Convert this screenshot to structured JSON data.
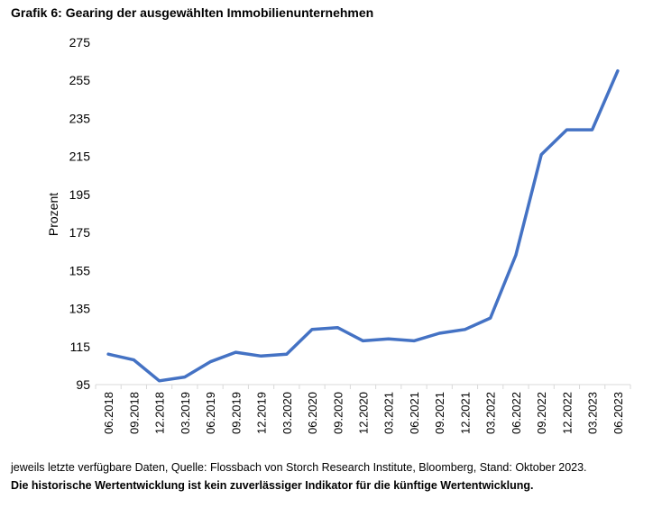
{
  "title": "Grafik 6: Gearing der ausgewählten Immobilienunternehmen",
  "footnote": "jeweils letzte verfügbare Daten, Quelle: Flossbach von Storch Research Institute, Bloomberg, Stand: Oktober 2023.",
  "disclaimer": "Die historische Wertentwicklung ist kein zuverlässiger Indikator für die künftige Wertentwicklung.",
  "chart_data": {
    "type": "line",
    "title": "Grafik 6: Gearing der ausgewählten Immobilienunternehmen",
    "xlabel": "",
    "ylabel": "Prozent",
    "ylim": [
      95,
      275
    ],
    "yticks": [
      95,
      115,
      135,
      155,
      175,
      195,
      215,
      235,
      255,
      275
    ],
    "grid": false,
    "color": "#4472C4",
    "categories": [
      "06.2018",
      "09.2018",
      "12.2018",
      "03.2019",
      "06.2019",
      "09.2019",
      "12.2019",
      "03.2020",
      "06.2020",
      "09.2020",
      "12.2020",
      "03.2021",
      "06.2021",
      "09.2021",
      "12.2021",
      "03.2022",
      "06.2022",
      "09.2022",
      "12.2022",
      "03.2023",
      "06.2023"
    ],
    "series": [
      {
        "name": "Gearing",
        "values": [
          111,
          108,
          97,
          99,
          107,
          112,
          110,
          111,
          124,
          125,
          118,
          119,
          118,
          122,
          124,
          130,
          163,
          216,
          229,
          229,
          260
        ]
      }
    ]
  }
}
